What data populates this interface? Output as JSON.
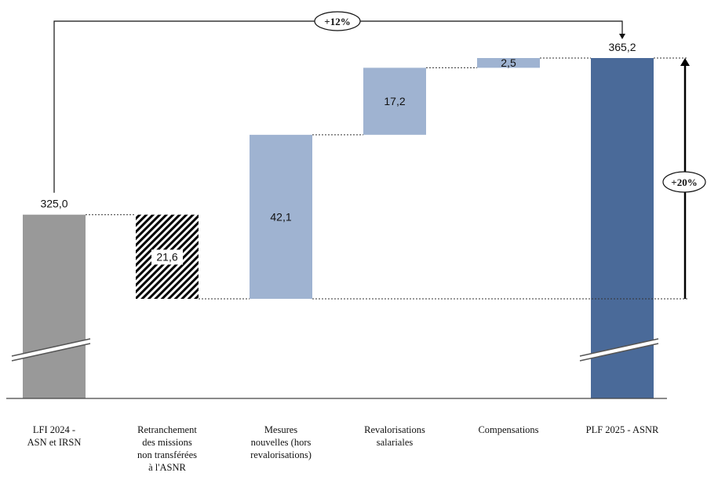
{
  "chart_data": {
    "type": "bar",
    "subtype": "waterfall",
    "categories": [
      "LFI 2024 - ASN et IRSN",
      "Retranchement des missions non transférées à l'ASNR",
      "Mesures nouvelles (hors revalorisations)",
      "Revalorisations salariales",
      "Compensations",
      "PLF 2025 - ASNR"
    ],
    "category_lines": [
      [
        "LFI 2024 -",
        "ASN et IRSN"
      ],
      [
        "Retranchement",
        "des missions",
        "non transférées",
        "à l'ASNR"
      ],
      [
        "Mesures",
        "nouvelles (hors",
        "revalorisations)"
      ],
      [
        "Revalorisations",
        "salariales"
      ],
      [
        "Compensations"
      ],
      [
        "PLF 2025 - ASNR"
      ]
    ],
    "values": [
      325.0,
      -21.6,
      42.1,
      17.2,
      2.5,
      365.2
    ],
    "value_labels": [
      "325,0",
      "21,6",
      "42,1",
      "17,2",
      "2,5",
      "365,2"
    ],
    "bar_kinds": [
      "total",
      "decrease",
      "increase",
      "increase",
      "increase",
      "total"
    ],
    "axis_break": true,
    "view_range": [
      270,
      372
    ],
    "title": "",
    "xlabel": "",
    "ylabel": "",
    "grid": false,
    "legend": "none",
    "annotations": [
      {
        "label": "+12%",
        "from": "LFI 2024 - ASN et IRSN",
        "to": "PLF 2025 - ASNR"
      },
      {
        "label": "+20%",
        "from_value": 303.4,
        "to_value": 365.2
      }
    ],
    "colors": {
      "total_start": "#999999",
      "total_end": "#4a6a99",
      "increase": "#9fb3d1",
      "decrease_hatch": "#000000",
      "axis": "#444444"
    }
  }
}
